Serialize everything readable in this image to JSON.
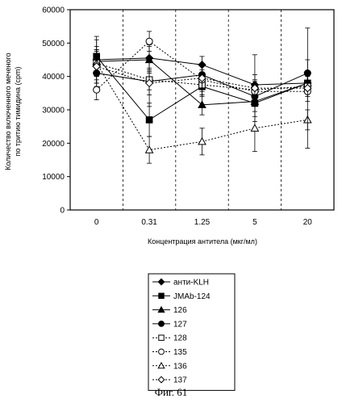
{
  "figure_caption": "Фиг. 61",
  "chart_data": {
    "type": "line",
    "xlabel": "Концентрация антитела (мкг/мл)",
    "ylabel_line1": "Количество включенного меченого",
    "ylabel_line2": "по тритию тимидина (cpm)",
    "categories": [
      "0",
      "0.31",
      "1.25",
      "5",
      "20"
    ],
    "yticks": [
      "0",
      "10000",
      "20000",
      "30000",
      "40000",
      "50000",
      "60000"
    ],
    "ylim": [
      0,
      60000
    ],
    "grid": "vertical dashed between categories",
    "legend_position": "bottom",
    "series": [
      {
        "name": "анти-KLH",
        "marker": "diamond-filled",
        "line": "solid",
        "values": [
          45000,
          45500,
          43500,
          37500,
          38000
        ],
        "err": [
          4000,
          4000,
          2500,
          3000,
          2500
        ]
      },
      {
        "name": "JMAb-124",
        "marker": "square-filled",
        "line": "solid",
        "values": [
          46000,
          27000,
          37000,
          32000,
          38000
        ],
        "err": [
          6000,
          5000,
          3000,
          4000,
          3000
        ]
      },
      {
        "name": "126",
        "marker": "triangle-filled",
        "line": "solid",
        "values": [
          44500,
          45000,
          31500,
          32500,
          38000
        ],
        "err": [
          3000,
          4000,
          3000,
          3000,
          3000
        ]
      },
      {
        "name": "127",
        "marker": "circle-filled",
        "line": "solid",
        "values": [
          41000,
          38500,
          40500,
          34000,
          41000
        ],
        "err": [
          3000,
          4000,
          3000,
          3000,
          4000
        ]
      },
      {
        "name": "128",
        "marker": "square-open",
        "line": "dotted",
        "values": [
          44000,
          39000,
          37500,
          36000,
          37000
        ],
        "err": [
          4000,
          3000,
          3000,
          3000,
          3000
        ]
      },
      {
        "name": "135",
        "marker": "circle-open",
        "line": "dotted",
        "values": [
          36000,
          50500,
          39000,
          35500,
          35500
        ],
        "err": [
          3000,
          3000,
          3000,
          3000,
          3000
        ]
      },
      {
        "name": "136",
        "marker": "triangle-open",
        "line": "dotted",
        "values": [
          44000,
          18000,
          20500,
          24500,
          27000
        ],
        "err": [
          7000,
          4000,
          4000,
          7000,
          3000
        ]
      },
      {
        "name": "137",
        "marker": "diamond-open",
        "line": "dotted",
        "values": [
          43000,
          38000,
          39500,
          36500,
          36500
        ],
        "err": [
          5000,
          7000,
          4000,
          10000,
          18000
        ]
      }
    ]
  }
}
